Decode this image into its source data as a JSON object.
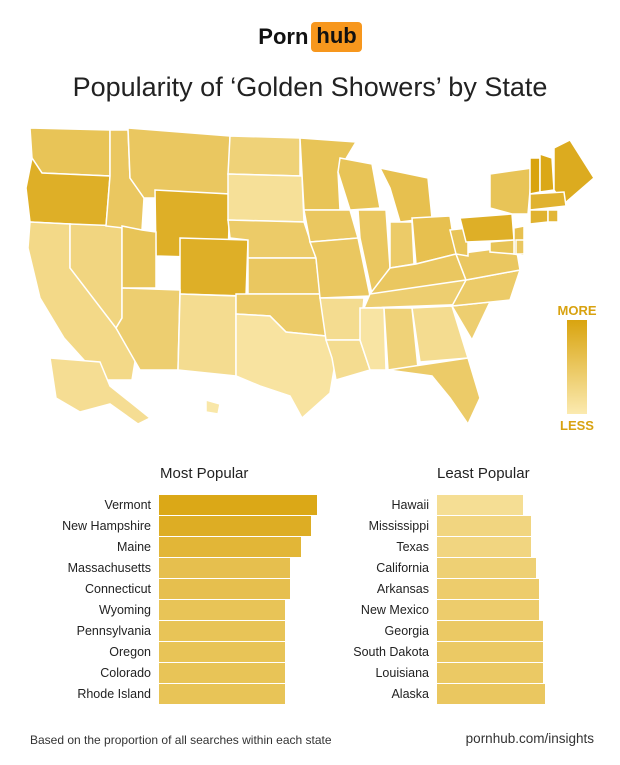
{
  "brand": {
    "part1": "Porn",
    "part2": "hub"
  },
  "title": "Popularity of ‘Golden Showers’ by State",
  "legend": {
    "more": "MORE",
    "less": "LESS"
  },
  "colors": {
    "high": "#d9a40f",
    "low": "#fbeab0",
    "brand": "#f7971d"
  },
  "chart_data": [
    {
      "type": "map",
      "description_scale": "relative popularity 0 (less) to 1 (more)",
      "states": {
        "WA": 0.55,
        "OR": 0.85,
        "CA": 0.25,
        "NV": 0.3,
        "ID": 0.5,
        "MT": 0.5,
        "WY": 0.85,
        "UT": 0.55,
        "AZ": 0.4,
        "CO": 0.85,
        "NM": 0.2,
        "ND": 0.35,
        "SD": 0.15,
        "NE": 0.45,
        "KS": 0.5,
        "OK": 0.45,
        "TX": 0.1,
        "MN": 0.55,
        "IA": 0.5,
        "MO": 0.5,
        "AR": 0.2,
        "LA": 0.2,
        "WI": 0.55,
        "IL": 0.5,
        "MI": 0.6,
        "IN": 0.45,
        "OH": 0.6,
        "KY": 0.5,
        "TN": 0.4,
        "MS": 0.08,
        "AL": 0.35,
        "GA": 0.2,
        "FL": 0.45,
        "SC": 0.4,
        "NC": 0.45,
        "VA": 0.5,
        "WV": 0.55,
        "PA": 0.85,
        "NY": 0.55,
        "VT": 1.0,
        "NH": 0.95,
        "ME": 0.9,
        "MA": 0.8,
        "CT": 0.8,
        "RI": 0.75,
        "NJ": 0.6,
        "DE": 0.5,
        "MD": 0.55,
        "AK": 0.18,
        "HI": 0.05
      }
    },
    {
      "type": "bar",
      "title": "Most Popular",
      "categories": [
        "Vermont",
        "New Hampshire",
        "Maine",
        "Massachusetts",
        "Connecticut",
        "Wyoming",
        "Pennsylvania",
        "Oregon",
        "Colorado",
        "Rhode Island"
      ],
      "values": [
        1.0,
        0.96,
        0.9,
        0.83,
        0.83,
        0.8,
        0.8,
        0.8,
        0.8,
        0.8
      ],
      "xlim": [
        0,
        1
      ]
    },
    {
      "type": "bar",
      "title": "Least Popular",
      "categories": [
        "Hawaii",
        "Mississippi",
        "Texas",
        "California",
        "Arkansas",
        "New Mexico",
        "Georgia",
        "South Dakota",
        "Louisiana",
        "Alaska"
      ],
      "values": [
        0.51,
        0.56,
        0.56,
        0.59,
        0.61,
        0.61,
        0.63,
        0.63,
        0.63,
        0.64
      ],
      "xlim": [
        0,
        1
      ]
    }
  ],
  "footer": {
    "note": "Based on the proportion of all searches within each state",
    "source": "pornhub.com/insights"
  }
}
